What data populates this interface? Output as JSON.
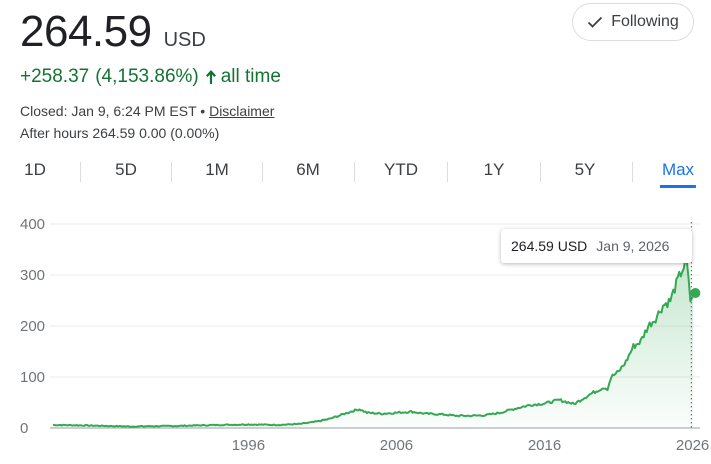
{
  "quote": {
    "price": "264.59",
    "currency": "USD",
    "change": "+258.37",
    "change_pct": "(4,153.86%)",
    "period": "all time",
    "closed_label": "Closed: Jan 9, 6:24 PM EST",
    "separator": " • ",
    "disclaimer": "Disclaimer",
    "after_hours": "After hours 264.59 0.00 (0.00%)",
    "positive_color": "#137333"
  },
  "follow": {
    "label": "Following",
    "icon": "check-icon"
  },
  "ranges": [
    {
      "label": "1D"
    },
    {
      "label": "5D"
    },
    {
      "label": "1M"
    },
    {
      "label": "6M"
    },
    {
      "label": "YTD"
    },
    {
      "label": "1Y"
    },
    {
      "label": "5Y"
    },
    {
      "label": "Max"
    }
  ],
  "active_range": "Max",
  "tooltip": {
    "price": "264.59 USD",
    "date": "Jan 9, 2026"
  },
  "chart_data": {
    "type": "area",
    "title": "",
    "xlabel": "",
    "ylabel": "",
    "line_color": "#34a853",
    "ylim": [
      0,
      400
    ],
    "yticks": [
      0,
      100,
      200,
      300,
      400
    ],
    "x_tick_labels": [
      "1996",
      "2006",
      "2016",
      "2026"
    ],
    "xlim": [
      1982.6,
      2026.5
    ],
    "x": [
      1982.8,
      1985,
      1988,
      1991,
      1994,
      1996,
      1998,
      1999.5,
      2000.5,
      2001.5,
      2002.5,
      2003,
      2003.5,
      2004,
      2005,
      2006,
      2007,
      2008,
      2009,
      2010,
      2011,
      2012,
      2013,
      2014,
      2015,
      2016,
      2017,
      2018,
      2019,
      2020,
      2020.25,
      2020.5,
      2021,
      2021.5,
      2022,
      2022.5,
      2023,
      2023.5,
      2024,
      2024.5,
      2025,
      2025.3,
      2025.6,
      2025.85,
      2026.05
    ],
    "y": [
      6,
      5,
      3,
      4,
      6,
      7,
      6,
      8,
      12,
      18,
      28,
      33,
      37,
      30,
      28,
      30,
      32,
      28,
      27,
      24,
      24,
      25,
      30,
      38,
      45,
      48,
      55,
      47,
      65,
      80,
      77,
      100,
      110,
      130,
      160,
      170,
      200,
      215,
      240,
      250,
      290,
      310,
      325,
      250,
      264.59
    ],
    "last_point": {
      "x": 2026.05,
      "y": 264.59
    }
  }
}
